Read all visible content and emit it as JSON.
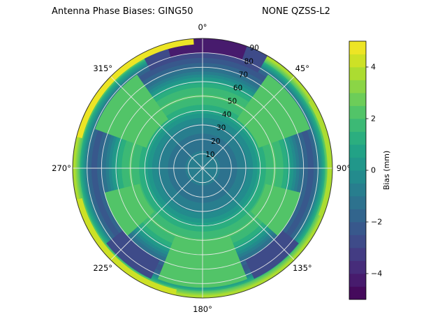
{
  "figure": {
    "title_left": "Antenna Phase Biases: GING50",
    "title_right": "NONE QZSS-L2"
  },
  "chart_data": {
    "type": "heatmap",
    "projection": "polar",
    "title": "Antenna Phase Biases: GING50        NONE QZSS-L2",
    "station": "GING50",
    "dataset_label": "NONE QZSS-L2",
    "colormap": "viridis",
    "azimuth_ticks_deg": [
      0,
      45,
      90,
      135,
      180,
      225,
      270,
      315
    ],
    "azimuth_tick_labels": [
      "0°",
      "45°",
      "90°",
      "135°",
      "180°",
      "225°",
      "270°",
      "315°"
    ],
    "radial_ticks": [
      10,
      20,
      30,
      40,
      50,
      60,
      70,
      80,
      90
    ],
    "radial_range": [
      0,
      90
    ],
    "radial_label_azimuth_deg": 22.5,
    "grid": true,
    "colorbar": {
      "label": "Bias (mm)",
      "ticks": [
        4,
        2,
        0,
        -2,
        -4
      ],
      "tick_labels": [
        "4",
        "2",
        "0",
        "−2",
        "−4"
      ],
      "vmin": -5,
      "vmax": 5,
      "level_step": 0.5,
      "position": "right"
    },
    "radial_bias_profile": [
      {
        "r": 0.0,
        "bias": -0.5
      },
      {
        "r": 0.1,
        "bias": -0.9
      },
      {
        "r": 0.2,
        "bias": -1.2
      },
      {
        "r": 0.3,
        "bias": -0.9
      },
      {
        "r": 0.38,
        "bias": -0.2
      },
      {
        "r": 0.46,
        "bias": 1.2
      },
      {
        "r": 0.55,
        "bias": 2.1
      },
      {
        "r": 0.62,
        "bias": 1.6
      },
      {
        "r": 0.68,
        "bias": 0.4
      },
      {
        "r": 0.74,
        "bias": -0.9
      },
      {
        "r": 0.8,
        "bias": -1.9
      },
      {
        "r": 0.85,
        "bias": -2.3
      },
      {
        "r": 0.89,
        "bias": -1.2
      },
      {
        "r": 0.92,
        "bias": 0.4
      },
      {
        "r": 0.95,
        "bias": 2.0
      },
      {
        "r": 0.975,
        "bias": 3.2
      },
      {
        "r": 0.99,
        "bias": 4.2
      },
      {
        "r": 1.0,
        "bias": 3.4
      }
    ],
    "azimuthal_features": [
      {
        "az0": -28,
        "az1": 30,
        "r0": 0.85,
        "r1": 1.0,
        "bias": -3.0
      },
      {
        "az0": -16,
        "az1": 20,
        "r0": 0.89,
        "r1": 1.0,
        "bias": -4.5
      },
      {
        "az0": 128,
        "az1": 155,
        "r0": 0.78,
        "r1": 0.94,
        "bias": -2.8
      },
      {
        "az0": 205,
        "az1": 232,
        "r0": 0.78,
        "r1": 0.94,
        "bias": -2.8
      },
      {
        "az0": 35,
        "az1": 70,
        "r0": 0.46,
        "r1": 0.88,
        "bias": 2.4
      },
      {
        "az0": 290,
        "az1": 325,
        "r0": 0.46,
        "r1": 0.88,
        "bias": 2.4
      },
      {
        "az0": 158,
        "az1": 202,
        "r0": 0.55,
        "r1": 0.92,
        "bias": 2.3
      },
      {
        "az0": 104,
        "az1": 132,
        "r0": 0.5,
        "r1": 0.78,
        "bias": 2.0
      },
      {
        "az0": 228,
        "az1": 256,
        "r0": 0.5,
        "r1": 0.78,
        "bias": 2.0
      },
      {
        "az0": 284,
        "az1": 356,
        "r0": 0.955,
        "r1": 1.0,
        "bias": 4.7
      },
      {
        "az0": 192,
        "az1": 256,
        "r0": 0.955,
        "r1": 1.0,
        "bias": 4.4
      },
      {
        "az0": 58,
        "az1": 112,
        "r0": 0.962,
        "r1": 1.0,
        "bias": 3.8
      }
    ]
  }
}
